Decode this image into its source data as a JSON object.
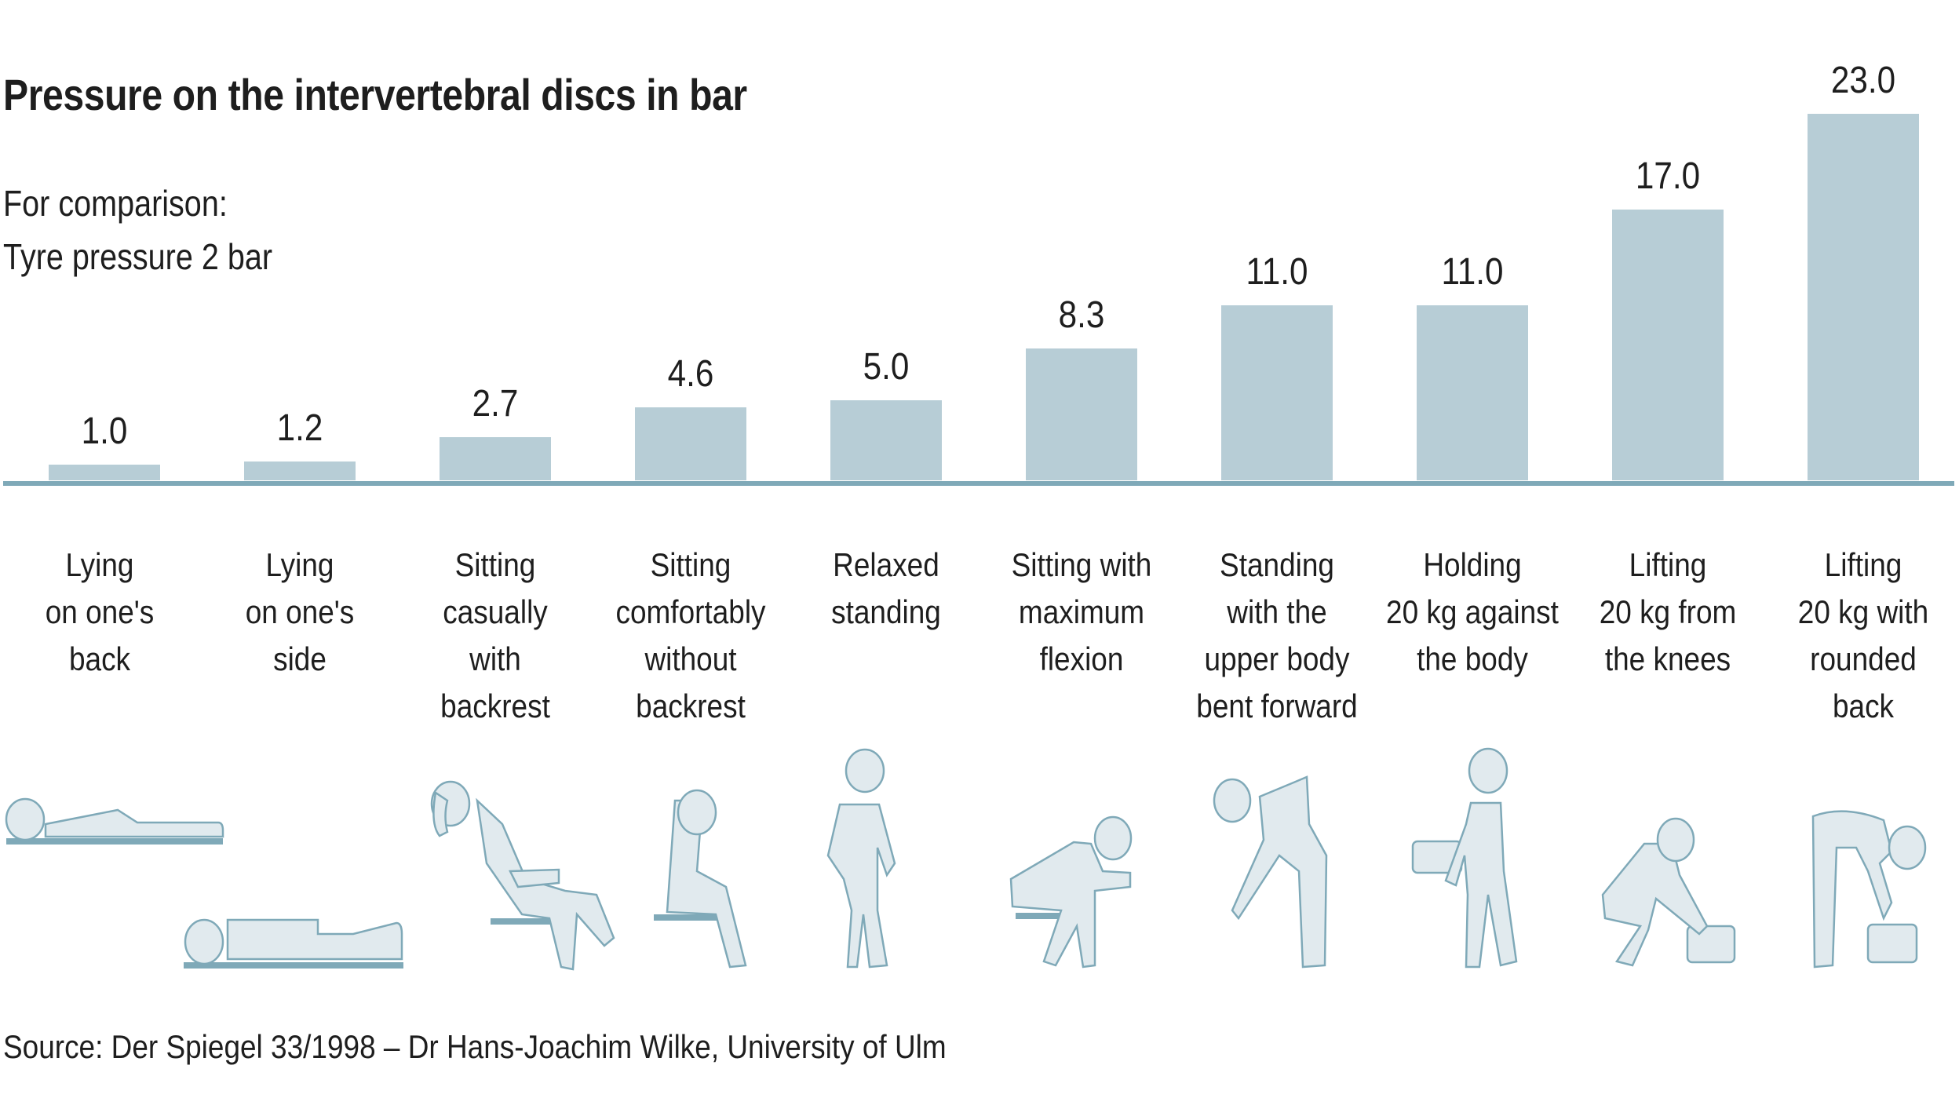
{
  "header": {
    "title": "Pressure on the intervertebral discs in bar",
    "comparison_line1": "For comparison:",
    "comparison_line2": "Tyre pressure 2 bar"
  },
  "footer": {
    "source": "Source: Der Spiegel 33/1998 – Dr Hans-Joachim Wilke, University of Ulm"
  },
  "colors": {
    "bar": "#b7cdd6",
    "axis": "#7fa9b8",
    "figure_fill": "#e1eaee",
    "figure_stroke": "#7fa9b8"
  },
  "bars": [
    {
      "label": "Lying\non one's\nback",
      "value": "1.0",
      "icon": "lying-on-back-figure-icon"
    },
    {
      "label": "Lying\non one's\nside",
      "value": "1.2",
      "icon": "lying-on-side-figure-icon"
    },
    {
      "label": "Sitting\ncasually\nwith\nbackrest",
      "value": "2.7",
      "icon": "sitting-reclined-figure-icon"
    },
    {
      "label": "Sitting\ncomfortably\nwithout\nbackrest",
      "value": "4.6",
      "icon": "sitting-upright-figure-icon"
    },
    {
      "label": "Relaxed\nstanding",
      "value": "5.0",
      "icon": "standing-figure-icon"
    },
    {
      "label": "Sitting with\nmaximum\nflexion",
      "value": "8.3",
      "icon": "sitting-flexed-figure-icon"
    },
    {
      "label": "Standing\nwith the\nupper body\nbent forward",
      "value": "11.0",
      "icon": "standing-bent-figure-icon"
    },
    {
      "label": "Holding\n20 kg against\nthe body",
      "value": "11.0",
      "icon": "holding-box-figure-icon"
    },
    {
      "label": "Lifting\n20 kg from\nthe knees",
      "value": "17.0",
      "icon": "lifting-knees-figure-icon"
    },
    {
      "label": "Lifting\n20 kg with\nrounded\nback",
      "value": "23.0",
      "icon": "lifting-rounded-back-figure-icon"
    }
  ],
  "chart_data": {
    "type": "bar",
    "title": "Pressure on the intervertebral discs in bar",
    "subtitle": "For comparison: Tyre pressure 2 bar",
    "categories": [
      "Lying on one's back",
      "Lying on one's side",
      "Sitting casually with backrest",
      "Sitting comfortably without backrest",
      "Relaxed standing",
      "Sitting with maximum flexion",
      "Standing with the upper body bent forward",
      "Holding 20 kg against the body",
      "Lifting 20 kg from the knees",
      "Lifting 20 kg with rounded back"
    ],
    "values": [
      1.0,
      1.2,
      2.7,
      4.6,
      5.0,
      8.3,
      11.0,
      11.0,
      17.0,
      23.0
    ],
    "xlabel": "",
    "ylabel": "bar",
    "ylim": [
      0,
      23
    ],
    "grid": false,
    "data_labels": true,
    "source": "Source: Der Spiegel 33/1998 – Dr Hans-Joachim Wilke, University of Ulm"
  }
}
